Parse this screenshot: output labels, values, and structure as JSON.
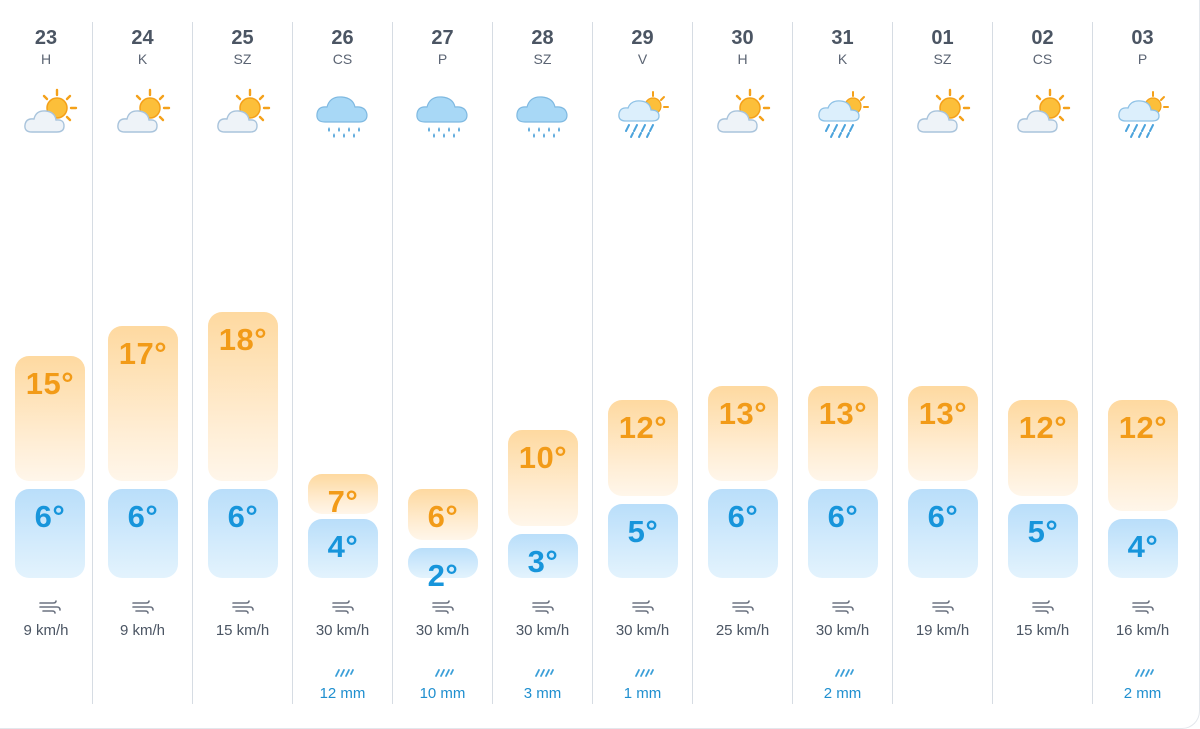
{
  "days": [
    {
      "date": "23",
      "dow": "H",
      "icon": "partly-cloudy-sun-icon",
      "max": "15°",
      "min": "6°",
      "max_temp": 15,
      "min_temp": 6,
      "wind": "9 km/h"
    },
    {
      "date": "24",
      "dow": "K",
      "icon": "partly-cloudy-sun-icon",
      "max": "17°",
      "min": "6°",
      "max_temp": 17,
      "min_temp": 6,
      "wind": "9 km/h"
    },
    {
      "date": "25",
      "dow": "SZ",
      "icon": "partly-cloudy-sun-icon",
      "max": "18°",
      "min": "6°",
      "max_temp": 18,
      "min_temp": 6,
      "wind": "15 km/h"
    },
    {
      "date": "26",
      "dow": "CS",
      "icon": "rain-cloud-icon",
      "max": "7°",
      "min": "4°",
      "max_temp": 7,
      "min_temp": 4,
      "wind": "30 km/h",
      "rain": "12 mm"
    },
    {
      "date": "27",
      "dow": "P",
      "icon": "rain-cloud-icon",
      "max": "6°",
      "min": "2°",
      "max_temp": 6,
      "min_temp": 2,
      "wind": "30 km/h",
      "rain": "10 mm"
    },
    {
      "date": "28",
      "dow": "SZ",
      "icon": "rain-cloud-icon",
      "max": "10°",
      "min": "3°",
      "max_temp": 10,
      "min_temp": 3,
      "wind": "30 km/h",
      "rain": "3 mm"
    },
    {
      "date": "29",
      "dow": "V",
      "icon": "sun-rain-shower-icon",
      "max": "12°",
      "min": "5°",
      "max_temp": 12,
      "min_temp": 5,
      "wind": "30 km/h",
      "rain": "1 mm"
    },
    {
      "date": "30",
      "dow": "H",
      "icon": "partly-cloudy-sun-icon",
      "max": "13°",
      "min": "6°",
      "max_temp": 13,
      "min_temp": 6,
      "wind": "25 km/h"
    },
    {
      "date": "31",
      "dow": "K",
      "icon": "sun-rain-shower-icon",
      "max": "13°",
      "min": "6°",
      "max_temp": 13,
      "min_temp": 6,
      "wind": "30 km/h",
      "rain": "2 mm"
    },
    {
      "date": "01",
      "dow": "SZ",
      "icon": "partly-cloudy-sun-icon",
      "max": "13°",
      "min": "6°",
      "max_temp": 13,
      "min_temp": 6,
      "wind": "19 km/h"
    },
    {
      "date": "02",
      "dow": "CS",
      "icon": "partly-cloudy-sun-icon",
      "max": "12°",
      "min": "5°",
      "max_temp": 12,
      "min_temp": 5,
      "wind": "15 km/h"
    },
    {
      "date": "03",
      "dow": "P",
      "icon": "sun-rain-shower-icon",
      "max": "12°",
      "min": "4°",
      "max_temp": 12,
      "min_temp": 4,
      "wind": "16 km/h",
      "rain": "2 mm"
    }
  ],
  "colors": {
    "max_text": "#f29b18",
    "min_text": "#1795db",
    "rain_text": "#1f8fcf",
    "max_bar": "#fed9a0",
    "min_bar": "#b9defa"
  }
}
